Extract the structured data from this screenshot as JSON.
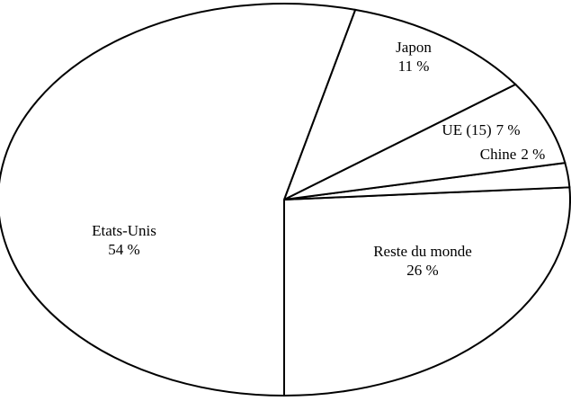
{
  "chart_data": {
    "type": "pie",
    "categories": [
      "Reste du monde",
      "Chine",
      "UE (15)",
      "Japon",
      "Etats-Unis"
    ],
    "values": [
      26,
      2,
      7,
      11,
      54
    ],
    "value_labels": [
      "26 %",
      "2 %",
      "7 %",
      "11 %",
      "54 %"
    ],
    "color": "#ffffff"
  }
}
